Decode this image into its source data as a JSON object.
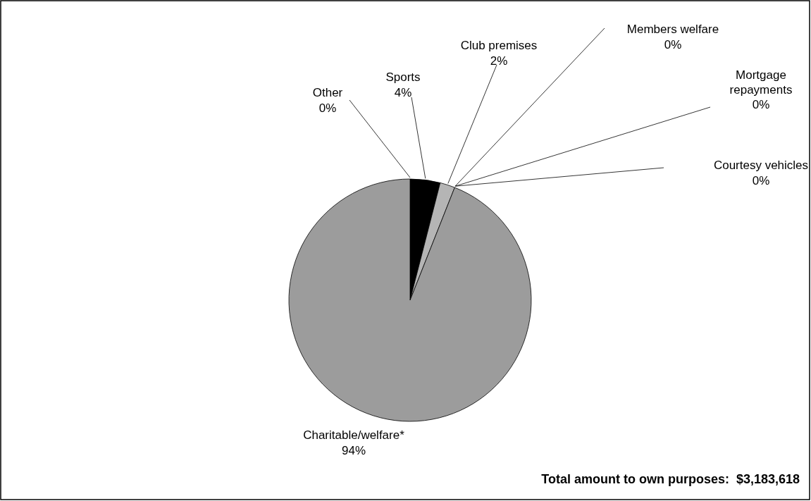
{
  "chart_data": {
    "type": "pie",
    "categories": [
      "Sports",
      "Club premises",
      "Members welfare",
      "Mortgage repayments",
      "Courtesy vehicles",
      "Charitable/welfare*",
      "Other"
    ],
    "values": [
      4,
      2,
      0,
      0,
      0,
      94,
      0
    ],
    "value_labels": [
      "4%",
      "2%",
      "0%",
      "0%",
      "0%",
      "94%",
      "0%"
    ],
    "colors": [
      "#000000",
      "#b5b5b5",
      "#ffffff",
      "#ffffff",
      "#ffffff",
      "#9c9c9c",
      "#ffffff"
    ],
    "annotations": [
      "Total amount to own purposes:  $3,183,618"
    ]
  }
}
